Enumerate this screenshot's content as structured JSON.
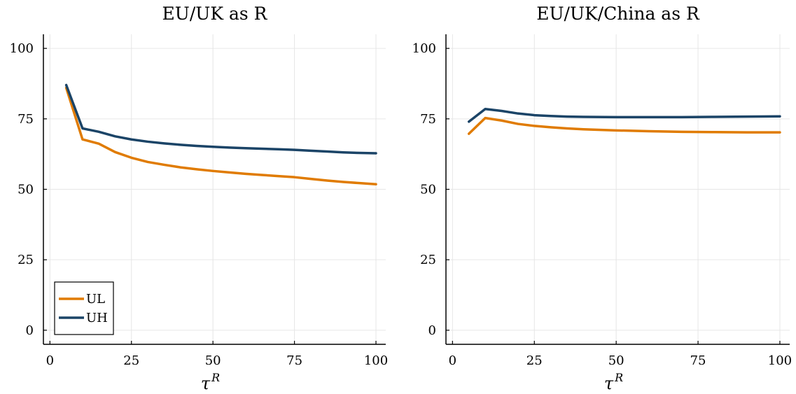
{
  "chart_data": [
    {
      "type": "line",
      "title": "EU/UK as R",
      "xlabel": "τ",
      "xlabel_superscript": "R",
      "ylabel": "",
      "xlim": [
        -2,
        103
      ],
      "ylim": [
        -5,
        105
      ],
      "xticks": [
        0,
        25,
        50,
        75,
        100
      ],
      "yticks": [
        0,
        25,
        50,
        75,
        100
      ],
      "grid": true,
      "legend": "bottom-left",
      "series": [
        {
          "name": "UL",
          "color": "#e07b00",
          "x": [
            5,
            10,
            15,
            20,
            25,
            30,
            35,
            40,
            45,
            50,
            55,
            60,
            65,
            70,
            75,
            80,
            85,
            90,
            95,
            100
          ],
          "y": [
            86,
            67.7,
            66.2,
            63.2,
            61.2,
            59.7,
            58.7,
            57.8,
            57.1,
            56.5,
            56.0,
            55.5,
            55.1,
            54.7,
            54.3,
            53.7,
            53.1,
            52.6,
            52.2,
            51.8
          ]
        },
        {
          "name": "UH",
          "color": "#1b4467",
          "x": [
            5,
            10,
            15,
            20,
            25,
            30,
            35,
            40,
            45,
            50,
            55,
            60,
            65,
            70,
            75,
            80,
            85,
            90,
            95,
            100
          ],
          "y": [
            87,
            71.6,
            70.4,
            68.8,
            67.7,
            66.9,
            66.3,
            65.8,
            65.4,
            65.1,
            64.8,
            64.6,
            64.4,
            64.2,
            64.0,
            63.7,
            63.4,
            63.1,
            62.9,
            62.8
          ]
        }
      ]
    },
    {
      "type": "line",
      "title": "EU/UK/China as R",
      "xlabel": "τ",
      "xlabel_superscript": "R",
      "ylabel": "",
      "xlim": [
        -2,
        103
      ],
      "ylim": [
        -5,
        105
      ],
      "xticks": [
        0,
        25,
        50,
        75,
        100
      ],
      "yticks": [
        0,
        25,
        50,
        75,
        100
      ],
      "grid": true,
      "series": [
        {
          "name": "UL",
          "color": "#e07b00",
          "x": [
            5,
            10,
            15,
            20,
            25,
            30,
            35,
            40,
            50,
            60,
            70,
            80,
            90,
            100
          ],
          "y": [
            69.7,
            75.3,
            74.4,
            73.2,
            72.5,
            72.0,
            71.6,
            71.3,
            70.9,
            70.6,
            70.4,
            70.3,
            70.2,
            70.2
          ]
        },
        {
          "name": "UH",
          "color": "#1b4467",
          "x": [
            5,
            10,
            15,
            20,
            25,
            30,
            35,
            40,
            50,
            60,
            70,
            80,
            90,
            100
          ],
          "y": [
            74.0,
            78.5,
            77.8,
            76.9,
            76.3,
            76.0,
            75.8,
            75.7,
            75.6,
            75.6,
            75.6,
            75.7,
            75.8,
            75.9
          ]
        }
      ]
    }
  ]
}
